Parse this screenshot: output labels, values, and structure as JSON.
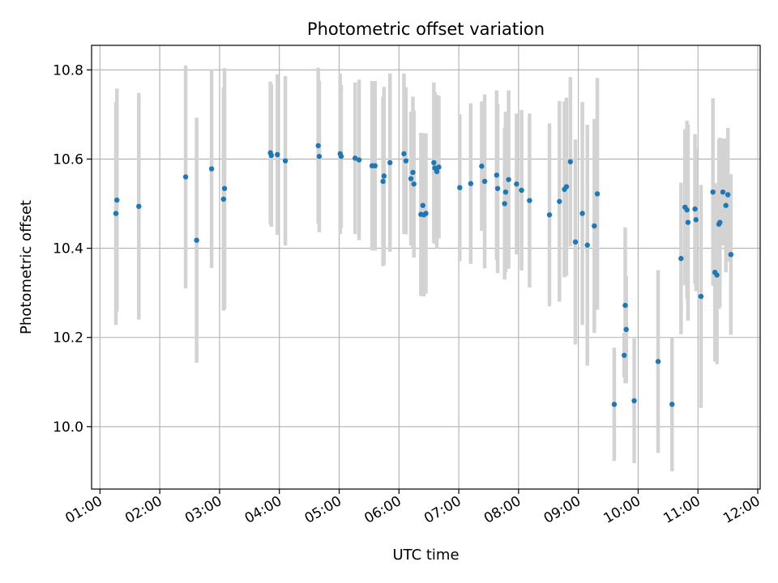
{
  "chart_data": {
    "type": "scatter",
    "title": "Photometric offset variation",
    "xlabel": "UTC time",
    "ylabel": "Photometric offset",
    "x_range_hours": [
      0.86,
      12.04
    ],
    "ylim": [
      9.86,
      10.855
    ],
    "x_ticks": [
      "01:00",
      "02:00",
      "03:00",
      "04:00",
      "05:00",
      "06:00",
      "07:00",
      "08:00",
      "09:00",
      "10:00",
      "11:00",
      "12:00"
    ],
    "y_ticks": [
      "10.0",
      "10.2",
      "10.4",
      "10.6",
      "10.8"
    ],
    "grid": true,
    "marker_color": "#1f77b4",
    "errorbar_color": "#d3d3d3",
    "series": [
      {
        "x": [
          "01:16",
          "01:17",
          "01:39",
          "02:26",
          "02:37",
          "02:52",
          "03:04",
          "03:05",
          "03:51",
          "03:52",
          "03:58",
          "04:06",
          "04:39",
          "04:40",
          "05:01",
          "05:02",
          "05:16",
          "05:20",
          "05:33",
          "05:36",
          "05:44",
          "05:45",
          "05:51",
          "06:05",
          "06:07",
          "06:12",
          "06:14",
          "06:15",
          "06:22",
          "06:24",
          "06:25",
          "06:27",
          "06:35",
          "06:36",
          "06:38",
          "06:40",
          "07:01",
          "07:12",
          "07:23",
          "07:26",
          "07:38",
          "07:39",
          "07:46",
          "07:47",
          "07:50",
          "07:58",
          "08:03",
          "08:11",
          "08:31",
          "08:41",
          "08:46",
          "08:48",
          "08:52",
          "08:57",
          "09:04",
          "09:09",
          "09:16",
          "09:19",
          "09:36",
          "09:46",
          "09:47",
          "09:48",
          "09:56",
          "10:20",
          "10:34",
          "10:43",
          "10:47",
          "10:49",
          "10:50",
          "10:57",
          "10:58",
          "11:03",
          "11:15",
          "11:17",
          "11:19",
          "11:21",
          "11:22",
          "11:25",
          "11:28",
          "11:30",
          "11:33"
        ],
        "y": [
          10.478,
          10.508,
          10.494,
          10.56,
          10.418,
          10.578,
          10.51,
          10.534,
          10.614,
          10.608,
          10.61,
          10.596,
          10.63,
          10.606,
          10.612,
          10.606,
          10.602,
          10.598,
          10.585,
          10.585,
          10.55,
          10.562,
          10.592,
          10.612,
          10.596,
          10.556,
          10.57,
          10.544,
          10.476,
          10.496,
          10.475,
          10.478,
          10.592,
          10.58,
          10.572,
          10.582,
          10.536,
          10.545,
          10.584,
          10.55,
          10.564,
          10.534,
          10.5,
          10.526,
          10.554,
          10.544,
          10.53,
          10.507,
          10.475,
          10.505,
          10.532,
          10.538,
          10.594,
          10.414,
          10.478,
          10.407,
          10.45,
          10.522,
          10.05,
          10.16,
          10.272,
          10.218,
          10.058,
          10.146,
          10.05,
          10.377,
          10.492,
          10.486,
          10.458,
          10.488,
          10.464,
          10.292,
          10.526,
          10.346,
          10.34,
          10.454,
          10.458,
          10.526,
          10.496,
          10.52,
          10.386
        ],
        "yerr": [
          0.25,
          0.25,
          0.254,
          0.25,
          0.275,
          0.222,
          0.25,
          0.27,
          0.16,
          0.16,
          0.18,
          0.19,
          0.175,
          0.17,
          0.18,
          0.16,
          0.17,
          0.18,
          0.19,
          0.19,
          0.19,
          0.2,
          0.2,
          0.18,
          0.165,
          0.15,
          0.17,
          0.165,
          0.183,
          0.16,
          0.183,
          0.18,
          0.18,
          0.17,
          0.172,
          0.16,
          0.165,
          0.18,
          0.145,
          0.195,
          0.19,
          0.19,
          0.17,
          0.18,
          0.2,
          0.158,
          0.18,
          0.195,
          0.205,
          0.225,
          0.197,
          0.2,
          0.19,
          0.23,
          0.25,
          0.27,
          0.24,
          0.26,
          0.127,
          0.05,
          0.175,
          0.12,
          0.14,
          0.205,
          0.15,
          0.17,
          0.175,
          0.2,
          0.22,
          0.168,
          0.16,
          0.25,
          0.21,
          0.2,
          0.2,
          0.19,
          0.19,
          0.12,
          0.15,
          0.15,
          0.18
        ]
      }
    ]
  }
}
